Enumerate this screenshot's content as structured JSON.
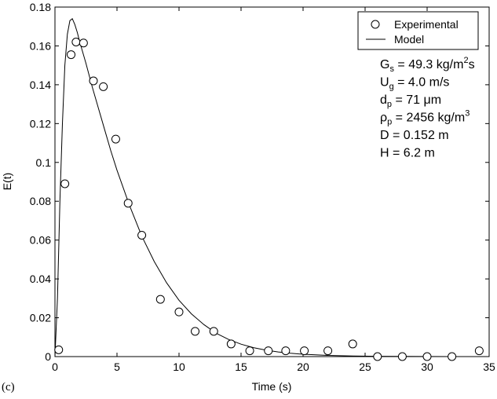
{
  "panel_label": "(c)",
  "annotations": [
    {
      "main": "G",
      "sub": "s",
      "rest": " = 49.3 kg/m",
      "sup": "2",
      "tail": "s"
    },
    {
      "main": "U",
      "sub": "g",
      "rest": " = 4.0 m/s",
      "sup": "",
      "tail": ""
    },
    {
      "main": "d",
      "sub": "p",
      "rest": " = 71 μm",
      "sup": "",
      "tail": ""
    },
    {
      "main": "ρ",
      "sub": "p",
      "rest": " = 2456 kg/m",
      "sup": "3",
      "tail": ""
    },
    {
      "main": "D",
      "sub": "",
      "rest": " = 0.152 m",
      "sup": "",
      "tail": ""
    },
    {
      "main": "H",
      "sub": "",
      "rest": " = 6.2  m",
      "sup": "",
      "tail": ""
    }
  ],
  "chart_data": {
    "type": "scatter",
    "title": "",
    "xlabel": "Time (s)",
    "ylabel": "E(t)",
    "xlim": [
      0,
      35
    ],
    "ylim": [
      0,
      0.18
    ],
    "xticks": [
      0,
      5,
      10,
      15,
      20,
      25,
      30,
      35
    ],
    "xtick_labels": [
      "0",
      "5",
      "10",
      "15",
      "20",
      "25",
      "30",
      "35"
    ],
    "yticks": [
      0,
      0.02,
      0.04,
      0.06,
      0.08,
      0.1,
      0.12,
      0.14,
      0.16,
      0.18
    ],
    "ytick_labels": [
      "0",
      "0.02",
      "0.04",
      "0.06",
      "0.08",
      "0.1",
      "0.12",
      "0.14",
      "0.16",
      "0.18"
    ],
    "grid": false,
    "legend_position": "top-right",
    "series": [
      {
        "name": "Experimental",
        "type": "scatter",
        "marker": "open-circle",
        "color": "#000000",
        "x": [
          0.3,
          0.8,
          1.3,
          1.7,
          2.3,
          3.1,
          3.9,
          4.9,
          5.9,
          7.0,
          8.5,
          10.0,
          11.3,
          12.8,
          14.2,
          15.7,
          17.2,
          18.6,
          20.1,
          22.0,
          24.0,
          26.0,
          28.0,
          30.0,
          32.0,
          34.2
        ],
        "y": [
          0.0035,
          0.089,
          0.1555,
          0.162,
          0.1615,
          0.142,
          0.139,
          0.112,
          0.079,
          0.0625,
          0.0295,
          0.023,
          0.013,
          0.013,
          0.0065,
          0.003,
          0.003,
          0.003,
          0.003,
          0.003,
          0.0065,
          0.0,
          0.0,
          0.0,
          0.0,
          0.003
        ]
      },
      {
        "name": "Model",
        "type": "line",
        "color": "#000000",
        "x": [
          0,
          0.2,
          0.4,
          0.6,
          0.8,
          1.0,
          1.2,
          1.4,
          1.6,
          1.8,
          2.0,
          2.5,
          3.0,
          3.5,
          4.0,
          4.5,
          5.0,
          6.0,
          7.0,
          8.0,
          9.0,
          10.0,
          11.0,
          12.0,
          13.0,
          14.0,
          15.0,
          16.0,
          17.0,
          18.0,
          19.0,
          20.0,
          22.0,
          24.0,
          26.0,
          28.0,
          30.0,
          32.0,
          34.0
        ],
        "y": [
          0.0,
          0.03,
          0.08,
          0.12,
          0.15,
          0.166,
          0.173,
          0.174,
          0.171,
          0.167,
          0.162,
          0.151,
          0.139,
          0.128,
          0.117,
          0.106,
          0.096,
          0.078,
          0.062,
          0.049,
          0.038,
          0.029,
          0.022,
          0.0165,
          0.012,
          0.0088,
          0.0064,
          0.0046,
          0.0033,
          0.0024,
          0.0017,
          0.0012,
          0.0006,
          0.0003,
          0.00015,
          8e-05,
          4e-05,
          2e-05,
          1e-05
        ]
      }
    ]
  }
}
